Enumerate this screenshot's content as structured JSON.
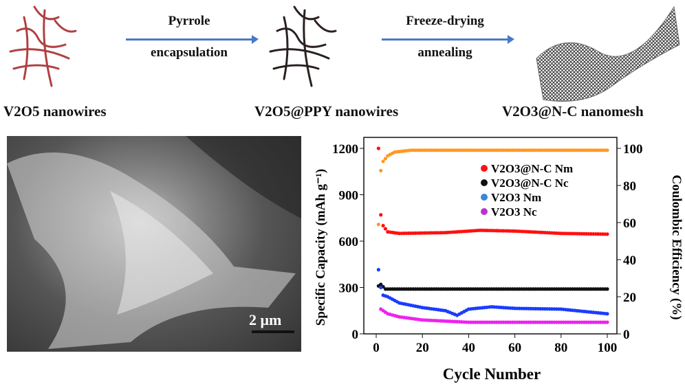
{
  "schematic": {
    "steps": [
      {
        "label": "V2O5 nanowires",
        "color": "#b04040"
      },
      {
        "label": "V2O5@PPY nanowires",
        "color": "#2a2020"
      },
      {
        "label": "V2O3@N-C nanomesh",
        "color": "#555555"
      }
    ],
    "arrows": [
      {
        "line1": "Pyrrole",
        "line2": "encapsulation"
      },
      {
        "line1": "Freeze-drying",
        "line2": "annealing"
      }
    ]
  },
  "sem_image": {
    "scale_bar": "2 μm"
  },
  "chart_data": {
    "type": "scatter",
    "xlabel": "Cycle Number",
    "ylabel": "Specific Capacity (mAh g⁻¹)",
    "y2label": "Coulombic Efficiency (%)",
    "xlim": [
      -3,
      105
    ],
    "ylim": [
      0,
      1200
    ],
    "y2lim": [
      0,
      100
    ],
    "xticks": [
      0,
      20,
      40,
      60,
      80,
      100
    ],
    "yticks": [
      0,
      300,
      600,
      900,
      1200
    ],
    "y2ticks": [
      0,
      20,
      40,
      60,
      80,
      100
    ],
    "legend_position": "top-right",
    "series": [
      {
        "name": "V2O3@N-C Nm",
        "color": "#ff1010",
        "axis": "left",
        "keypoints": [
          [
            1,
            1200
          ],
          [
            2,
            770
          ],
          [
            3,
            700
          ],
          [
            5,
            660
          ],
          [
            10,
            650
          ],
          [
            30,
            655
          ],
          [
            45,
            670
          ],
          [
            60,
            665
          ],
          [
            80,
            650
          ],
          [
            100,
            645
          ]
        ]
      },
      {
        "name": "V2O3@N-C Nc",
        "color": "#111111",
        "axis": "left",
        "keypoints": [
          [
            1,
            310
          ],
          [
            2,
            320
          ],
          [
            4,
            290
          ],
          [
            100,
            290
          ]
        ]
      },
      {
        "name": "V2O3 Nm",
        "color": "#1a3cff",
        "legend_color": "#3a88d8",
        "axis": "left",
        "keypoints": [
          [
            1,
            415
          ],
          [
            2,
            300
          ],
          [
            3,
            250
          ],
          [
            5,
            240
          ],
          [
            10,
            200
          ],
          [
            20,
            170
          ],
          [
            30,
            150
          ],
          [
            35,
            120
          ],
          [
            40,
            160
          ],
          [
            50,
            175
          ],
          [
            60,
            165
          ],
          [
            80,
            160
          ],
          [
            100,
            130
          ]
        ]
      },
      {
        "name": "V2O3 Nc",
        "color": "#ee22ee",
        "legend_color": "#bb33cc",
        "axis": "left",
        "keypoints": [
          [
            2,
            160
          ],
          [
            5,
            130
          ],
          [
            10,
            110
          ],
          [
            20,
            90
          ],
          [
            40,
            75
          ],
          [
            100,
            75
          ]
        ]
      },
      {
        "name": "Coulombic Efficiency",
        "color": "#ff9922",
        "axis": "right",
        "in_legend": false,
        "keypoints": [
          [
            1,
            59
          ],
          [
            2,
            88
          ],
          [
            3,
            93
          ],
          [
            5,
            96
          ],
          [
            8,
            98
          ],
          [
            15,
            99
          ],
          [
            100,
            99
          ]
        ]
      }
    ]
  }
}
